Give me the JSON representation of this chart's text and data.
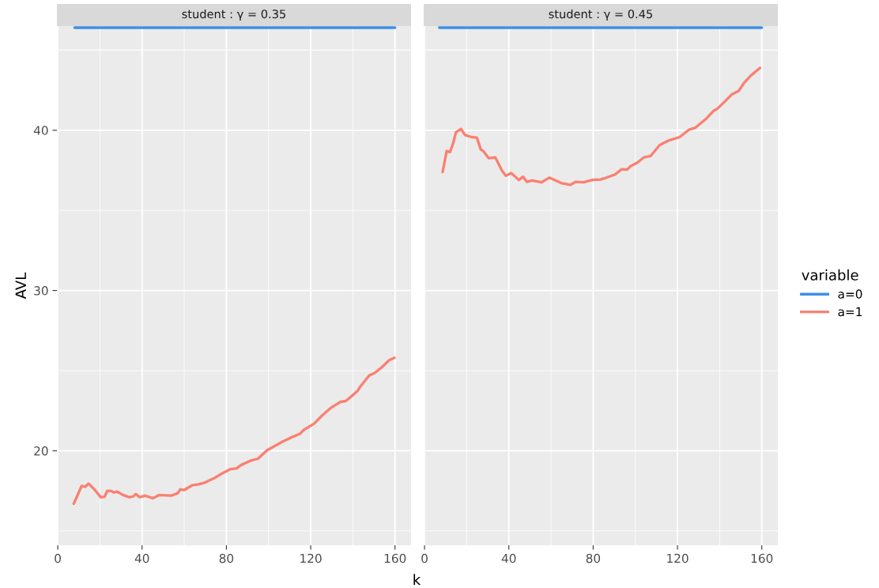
{
  "chart_data": [
    {
      "type": "line",
      "title": "student : γ = 0.35",
      "xlabel": "k",
      "ylabel": "AVL",
      "xlim": [
        -0.4,
        167.6
      ],
      "ylim": [
        14.1,
        46.5
      ],
      "xticks": [
        0,
        40,
        80,
        120,
        160
      ],
      "yticks": [
        20,
        30,
        40
      ],
      "grid": true,
      "legend": "right",
      "legend_title": "variable",
      "series": [
        {
          "name": "a=0",
          "color": "#3d8fe6",
          "x": [
            8,
            160
          ],
          "values": [
            46.4,
            46.4
          ]
        },
        {
          "name": "a=1",
          "color": "#fa8072",
          "x": [
            7.6,
            11.3,
            13,
            14.6,
            17.3,
            20.4,
            22.2,
            23.5,
            25.3,
            26.5,
            28.1,
            30.8,
            33.9,
            35.8,
            37,
            38.9,
            41.4,
            45.1,
            48.2,
            53.8,
            56.9,
            58.2,
            60,
            63.8,
            66.9,
            69.4,
            74.4,
            77.5,
            81.8,
            84.9,
            86.8,
            91.8,
            94.9,
            99.3,
            103,
            106.7,
            111.1,
            114.8,
            116.7,
            121.7,
            125.4,
            129.8,
            134.1,
            136.6,
            139.8,
            142.3,
            143.5,
            147.8,
            150.3,
            154.1,
            157.2,
            159.7
          ],
          "values": [
            16.7,
            17.8,
            17.75,
            17.95,
            17.6,
            17.1,
            17.13,
            17.5,
            17.5,
            17.4,
            17.45,
            17.25,
            17.1,
            17.15,
            17.3,
            17.1,
            17.2,
            17.04,
            17.24,
            17.2,
            17.35,
            17.6,
            17.55,
            17.85,
            17.9,
            18,
            18.3,
            18.55,
            18.85,
            18.9,
            19.1,
            19.4,
            19.5,
            20.03,
            20.3,
            20.57,
            20.85,
            21.05,
            21.3,
            21.7,
            22.2,
            22.7,
            23.05,
            23.1,
            23.45,
            23.75,
            24,
            24.7,
            24.85,
            25.25,
            25.65,
            25.8
          ]
        }
      ]
    },
    {
      "type": "line",
      "title": "student : γ = 0.45",
      "xlim": [
        -0.4,
        167.6
      ],
      "ylim": [
        14.1,
        46.5
      ],
      "xticks": [
        0,
        40,
        80,
        120,
        160
      ],
      "yticks": [
        20,
        30,
        40
      ],
      "grid": true,
      "tick_labels": "x",
      "series": [
        {
          "name": "a=0",
          "color": "#3d8fe6",
          "x": [
            7,
            160
          ],
          "values": [
            46.4,
            46.4
          ]
        },
        {
          "name": "a=1",
          "color": "#fa8072",
          "x": [
            8.6,
            10.5,
            12.1,
            13.6,
            14.9,
            17.3,
            19.2,
            22.4,
            24.8,
            26.7,
            27.9,
            30.4,
            33.6,
            36.7,
            38.6,
            41.1,
            44.8,
            46.7,
            48.6,
            51.1,
            55.4,
            59.2,
            61.7,
            64.8,
            69.2,
            71.6,
            75.4,
            79.8,
            83.5,
            86,
            90.4,
            93.5,
            96,
            97.9,
            101,
            104.1,
            107.2,
            111.6,
            116,
            121,
            125.4,
            128.5,
            133.4,
            137.2,
            139,
            142.2,
            145.9,
            149.1,
            151.6,
            154.7,
            159.1
          ],
          "values": [
            37.4,
            38.7,
            38.64,
            39.2,
            39.87,
            40.08,
            39.7,
            39.57,
            39.54,
            38.8,
            38.7,
            38.26,
            38.3,
            37.49,
            37.16,
            37.33,
            36.9,
            37.1,
            36.78,
            36.86,
            36.75,
            37.04,
            36.9,
            36.71,
            36.59,
            36.78,
            36.75,
            36.9,
            36.93,
            37.03,
            37.24,
            37.57,
            37.54,
            37.77,
            37.98,
            38.31,
            38.39,
            39.08,
            39.37,
            39.57,
            40.03,
            40.16,
            40.69,
            41.22,
            41.35,
            41.76,
            42.25,
            42.46,
            42.96,
            43.4,
            43.89
          ]
        }
      ]
    }
  ]
}
